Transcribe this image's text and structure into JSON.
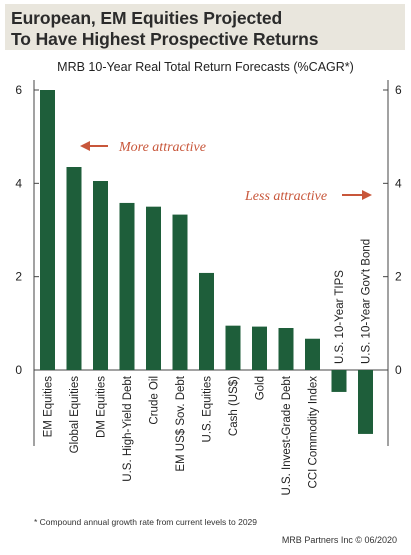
{
  "title": {
    "line1": "European, EM Equities Projected",
    "line2": "To Have Highest Prospective Returns"
  },
  "footnote": "* Compound annual growth rate from current levels to 2029",
  "credit": "MRB Partners Inc © 06/2020",
  "colors": {
    "bar": "#1e5e3a",
    "title_bg": "#e9e6dd",
    "arrow": "#c8563a"
  },
  "chart_data": {
    "type": "bar",
    "title": "MRB 10-Year Real Total Return Forecasts (%CAGR*)",
    "categories": [
      "EM Equities",
      "Global Equities",
      "DM Equities",
      "U.S. High-Yield Debt",
      "Crude Oil",
      "EM US$ Sov. Debt",
      "U.S. Equities",
      "Cash (US$)",
      "Gold",
      "U.S. Invest-Grade Debt",
      "CCI Commodity Index",
      "U.S. 10-Year TIPS",
      "U.S. 10-Year Gov't Bond"
    ],
    "values": [
      6.0,
      4.35,
      4.05,
      3.58,
      3.5,
      3.33,
      2.08,
      0.95,
      0.93,
      0.9,
      0.67,
      -0.47,
      -1.37
    ],
    "ylim": [
      -1.6,
      6.0
    ],
    "yticks_left": [
      "6",
      "4",
      "2",
      "0"
    ],
    "yticks_right": [
      "6",
      "4",
      "2",
      "0"
    ],
    "grid": false,
    "annotations": [
      {
        "text": "More attractive",
        "arrow": "left"
      },
      {
        "text": "Less attractive",
        "arrow": "right"
      }
    ]
  }
}
